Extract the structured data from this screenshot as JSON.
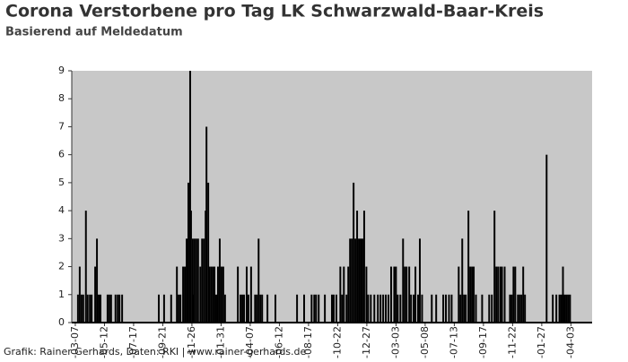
{
  "chart_data": {
    "type": "bar",
    "title": "Corona Verstorbene pro Tag LK Schwarzwald-Baar-Kreis",
    "subtitle": "Basierend auf Meldedatum",
    "source": "Grafik: Rainer Gerhards, Daten: RKI | www.rainer-gerhards.de",
    "color": "#000000",
    "background": "#c8c8c8",
    "xlim": [
      -8,
      1170
    ],
    "ylim": [
      0,
      9
    ],
    "yticks": [
      0,
      1,
      2,
      3,
      4,
      5,
      6,
      7,
      8,
      9
    ],
    "xticks": [
      {
        "value": 0,
        "label": "-03-07"
      },
      {
        "value": 66,
        "label": "-05-12"
      },
      {
        "value": 132,
        "label": "-07-17"
      },
      {
        "value": 198,
        "label": "-09-21"
      },
      {
        "value": 264,
        "label": "-11-26"
      },
      {
        "value": 330,
        "label": "-01-31"
      },
      {
        "value": 396,
        "label": "-04-07"
      },
      {
        "value": 462,
        "label": "-06-12"
      },
      {
        "value": 528,
        "label": "-08-17"
      },
      {
        "value": 594,
        "label": "-10-22"
      },
      {
        "value": 660,
        "label": "-12-27"
      },
      {
        "value": 726,
        "label": "-03-03"
      },
      {
        "value": 792,
        "label": "-05-08"
      },
      {
        "value": 858,
        "label": "-07-13"
      },
      {
        "value": 924,
        "label": "-09-17"
      },
      {
        "value": 990,
        "label": "-11-22"
      },
      {
        "value": 1056,
        "label": "-01-27"
      },
      {
        "value": 1122,
        "label": "-04-03"
      }
    ],
    "x": [
      6,
      10,
      14,
      18,
      24,
      28,
      33,
      37,
      45,
      49,
      53,
      57,
      73,
      77,
      81,
      91,
      96,
      100,
      106,
      189,
      201,
      217,
      230,
      234,
      238,
      244,
      248,
      252,
      256,
      260,
      262,
      266,
      268,
      270,
      274,
      278,
      283,
      287,
      291,
      295,
      297,
      301,
      303,
      307,
      311,
      315,
      319,
      323,
      327,
      331,
      335,
      339,
      368,
      374,
      378,
      382,
      388,
      392,
      398,
      407,
      411,
      415,
      419,
      423,
      435,
      453,
      502,
      518,
      535,
      541,
      545,
      551,
      565,
      581,
      585,
      591,
      600,
      604,
      608,
      614,
      618,
      622,
      626,
      630,
      634,
      638,
      642,
      646,
      650,
      654,
      659,
      663,
      669,
      677,
      685,
      691,
      697,
      703,
      709,
      715,
      722,
      726,
      730,
      736,
      742,
      746,
      750,
      756,
      760,
      766,
      770,
      776,
      780,
      785,
      807,
      817,
      833,
      839,
      846,
      852,
      868,
      872,
      876,
      880,
      884,
      890,
      894,
      898,
      902,
      907,
      921,
      937,
      943,
      949,
      953,
      957,
      962,
      966,
      972,
      984,
      988,
      992,
      996,
      1002,
      1006,
      1010,
      1014,
      1018,
      1067,
      1081,
      1089,
      1096,
      1100,
      1104,
      1108,
      1112,
      1116,
      1120
    ],
    "values": [
      1,
      2,
      1,
      1,
      4,
      1,
      1,
      1,
      2,
      3,
      1,
      1,
      1,
      1,
      1,
      1,
      1,
      1,
      1,
      1,
      1,
      1,
      2,
      1,
      1,
      2,
      2,
      3,
      5,
      9,
      4,
      3,
      1,
      3,
      3,
      3,
      2,
      3,
      3,
      4,
      7,
      5,
      2,
      2,
      2,
      2,
      1,
      2,
      3,
      2,
      2,
      1,
      2,
      1,
      1,
      1,
      2,
      1,
      2,
      1,
      1,
      3,
      1,
      1,
      1,
      1,
      1,
      1,
      1,
      1,
      1,
      1,
      1,
      1,
      1,
      1,
      2,
      1,
      2,
      1,
      2,
      3,
      3,
      5,
      3,
      4,
      3,
      3,
      3,
      4,
      2,
      1,
      1,
      1,
      1,
      1,
      1,
      1,
      1,
      2,
      2,
      2,
      1,
      1,
      3,
      2,
      2,
      2,
      1,
      1,
      2,
      1,
      3,
      1,
      1,
      1,
      1,
      1,
      1,
      1,
      2,
      1,
      3,
      1,
      1,
      4,
      2,
      2,
      2,
      1,
      1,
      1,
      1,
      4,
      2,
      2,
      2,
      2,
      2,
      1,
      1,
      2,
      2,
      1,
      1,
      1,
      2,
      1,
      6,
      1,
      1,
      1,
      1,
      2,
      1,
      1,
      1,
      1
    ]
  }
}
